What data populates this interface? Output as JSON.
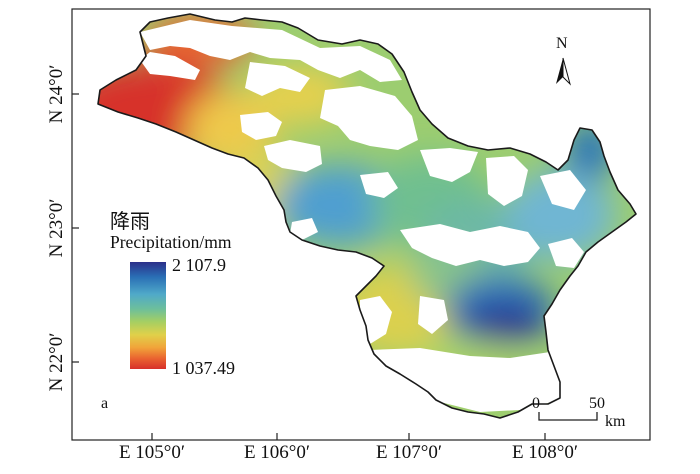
{
  "map": {
    "panel_label": "a",
    "north_label": "N",
    "legend": {
      "title_cn": "降雨",
      "title_en": "Precipitation/mm",
      "max_label": "2 107.9",
      "min_label": "1 037.49",
      "max_value": 2107.9,
      "min_value": 1037.49,
      "colors": [
        "#2b2f8a",
        "#2a6fb5",
        "#4fa9c9",
        "#6dbf9b",
        "#a6cf62",
        "#e0d04a",
        "#f1a43a",
        "#ea6430",
        "#d7302a"
      ]
    },
    "y_ticks": [
      "N 24°0′",
      "N 23°0′",
      "N 22°0′"
    ],
    "x_ticks": [
      "E 105°0′",
      "E 106°0′",
      "E 107°0′",
      "E 108°0′"
    ],
    "scale_bar": {
      "zero": "0",
      "fifty": "50",
      "unit": "km"
    }
  }
}
